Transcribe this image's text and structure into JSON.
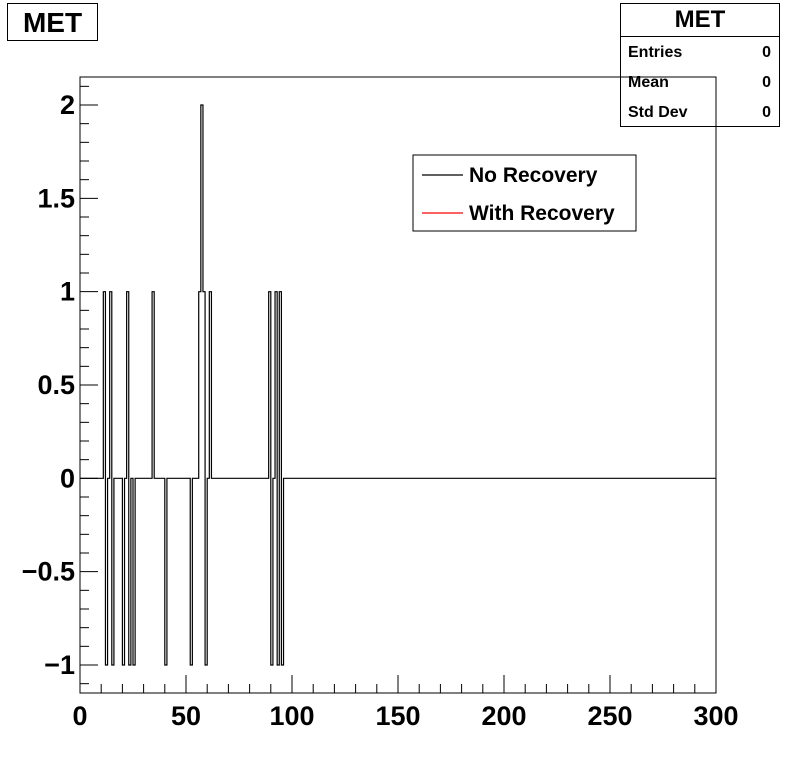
{
  "chart_title": "MET",
  "stats": {
    "title": "MET",
    "rows": [
      {
        "label": "Entries",
        "value": "0"
      },
      {
        "label": "Mean",
        "value": "0"
      },
      {
        "label": "Std Dev",
        "value": "0"
      }
    ]
  },
  "chart_data": {
    "type": "line",
    "title": "MET",
    "xlabel": "",
    "ylabel": "",
    "xlim": [
      0,
      300
    ],
    "ylim": [
      -1.15,
      2.15
    ],
    "x_ticks": [
      0,
      50,
      100,
      150,
      200,
      250,
      300
    ],
    "x_tick_labels": [
      "0",
      "50",
      "100",
      "150",
      "200",
      "250",
      "300"
    ],
    "y_ticks": [
      -1,
      -0.5,
      0,
      0.5,
      1,
      1.5,
      2
    ],
    "y_tick_labels": [
      "−1",
      "−0.5",
      "0",
      "0.5",
      "1",
      "1.5",
      "2"
    ],
    "grid": false,
    "legend_position": "top-center",
    "series": [
      {
        "name": "No Recovery",
        "color": "#000000",
        "step": true,
        "bin_width": 1,
        "x": [
          0,
          11,
          12,
          13,
          14,
          15,
          16,
          17,
          18,
          19,
          20,
          21,
          22,
          23,
          24,
          25,
          26,
          27,
          34,
          35,
          36,
          40,
          41,
          42,
          52,
          53,
          54,
          56,
          57,
          58,
          59,
          60,
          61,
          62,
          63,
          64,
          89,
          90,
          91,
          92,
          93,
          94,
          95,
          96,
          97,
          300
        ],
        "y": [
          0,
          1,
          -1,
          0,
          1,
          -1,
          0,
          0,
          0,
          0,
          -1,
          0,
          1,
          -1,
          0,
          -1,
          0,
          0,
          1,
          0,
          0,
          -1,
          0,
          0,
          -1,
          0,
          0,
          1,
          2,
          1,
          -1,
          0,
          1,
          0,
          0,
          0,
          1,
          -1,
          0,
          1,
          -1,
          1,
          -1,
          0,
          0,
          0
        ]
      },
      {
        "name": "With Recovery",
        "color": "#ff0000",
        "step": true,
        "bin_width": 1,
        "x": [],
        "y": []
      }
    ]
  }
}
